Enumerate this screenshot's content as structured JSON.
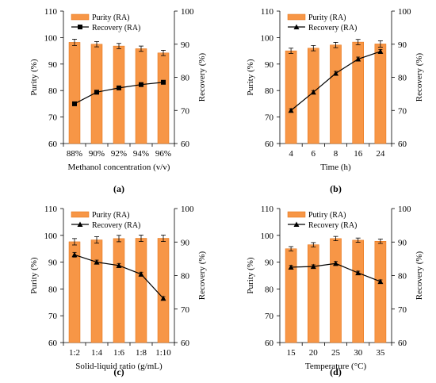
{
  "colors": {
    "bar": "#F79646",
    "bar_edge": "#E46C0A",
    "line": "#000000"
  },
  "chart_data": [
    {
      "type": "bar+line",
      "panel_label": "(a)",
      "xlabel": "Methanol concentration (v/v)",
      "ylabel_left": "Purity (%)",
      "ylabel_right": "Recovery (%)",
      "ylim_left": [
        60,
        110
      ],
      "yticks_left": [
        60,
        70,
        80,
        90,
        100,
        110
      ],
      "ylim_right": [
        60,
        100
      ],
      "yticks_right": [
        60,
        70,
        80,
        90,
        100
      ],
      "categories": [
        "88%",
        "90%",
        "92%",
        "94%",
        "96%"
      ],
      "marker": "square",
      "series": [
        {
          "name": "Purity (RA)",
          "kind": "bar",
          "axis": "left",
          "values": [
            98.2,
            97.5,
            96.8,
            95.8,
            94.2
          ],
          "errors": [
            1.2,
            1.0,
            1.0,
            1.0,
            1.0
          ]
        },
        {
          "name": "Recovery (RA)",
          "kind": "line",
          "axis": "right",
          "values": [
            72.0,
            75.5,
            76.8,
            77.8,
            78.5
          ],
          "errors": [
            0.5,
            0.5,
            0.5,
            0.5,
            0.5
          ]
        }
      ]
    },
    {
      "type": "bar+line",
      "panel_label": "(b)",
      "xlabel": "Time (h)",
      "ylabel_left": "Purity (%)",
      "ylabel_right": "Recovery (%)",
      "ylim_left": [
        60,
        110
      ],
      "yticks_left": [
        60,
        70,
        80,
        90,
        100,
        110
      ],
      "ylim_right": [
        60,
        100
      ],
      "yticks_right": [
        60,
        70,
        80,
        90,
        100
      ],
      "categories": [
        "4",
        "6",
        "8",
        "16",
        "24"
      ],
      "marker": "triangle",
      "series": [
        {
          "name": "Purity (RA)",
          "kind": "bar",
          "axis": "left",
          "values": [
            95.0,
            96.0,
            97.2,
            98.3,
            97.6
          ],
          "errors": [
            1.0,
            1.0,
            1.0,
            1.0,
            1.2
          ]
        },
        {
          "name": "Recovery (RA)",
          "kind": "line",
          "axis": "right",
          "values": [
            70.0,
            75.5,
            81.2,
            85.5,
            87.8
          ],
          "errors": [
            0.5,
            0.5,
            0.6,
            0.6,
            0.6
          ]
        }
      ]
    },
    {
      "type": "bar+line",
      "panel_label": "(c)",
      "xlabel": "Solid-liquid ratio (g/mL)",
      "ylabel_left": "Purity (%)",
      "ylabel_right": "Recovery (%)",
      "ylim_left": [
        60,
        110
      ],
      "yticks_left": [
        60,
        70,
        80,
        90,
        100,
        110
      ],
      "ylim_right": [
        60,
        100
      ],
      "yticks_right": [
        60,
        70,
        80,
        90,
        100
      ],
      "categories": [
        "1:2",
        "1:4",
        "1:6",
        "1:8",
        "1:10"
      ],
      "marker": "triangle",
      "series": [
        {
          "name": "Purity (RA)",
          "kind": "bar",
          "axis": "left",
          "values": [
            97.6,
            98.3,
            98.8,
            98.9,
            98.9
          ],
          "errors": [
            1.2,
            1.2,
            1.2,
            1.2,
            1.2
          ]
        },
        {
          "name": "Recovery (RA)",
          "kind": "line",
          "axis": "right",
          "values": [
            86.2,
            84.0,
            83.0,
            80.4,
            73.2
          ],
          "errors": [
            0.7,
            0.6,
            0.6,
            0.6,
            0.5
          ]
        }
      ]
    },
    {
      "type": "bar+line",
      "panel_label": "(d)",
      "xlabel": "Temperature (°C)",
      "ylabel_left": "Purity (%)",
      "ylabel_right": "Recovery (%)",
      "ylim_left": [
        60,
        110
      ],
      "yticks_left": [
        60,
        70,
        80,
        90,
        100,
        110
      ],
      "ylim_right": [
        60,
        100
      ],
      "yticks_right": [
        60,
        70,
        80,
        90,
        100
      ],
      "categories": [
        "15",
        "20",
        "25",
        "30",
        "35"
      ],
      "marker": "triangle",
      "series": [
        {
          "name": "Putiry (RA)",
          "kind": "bar",
          "axis": "left",
          "values": [
            95.0,
            96.5,
            98.8,
            98.2,
            97.8
          ],
          "errors": [
            0.8,
            0.8,
            0.8,
            0.8,
            0.8
          ]
        },
        {
          "name": "Recovery (RA)",
          "kind": "line",
          "axis": "right",
          "values": [
            82.5,
            82.7,
            83.6,
            80.8,
            78.2
          ],
          "errors": [
            0.5,
            0.5,
            0.6,
            0.5,
            0.5
          ]
        }
      ]
    }
  ]
}
